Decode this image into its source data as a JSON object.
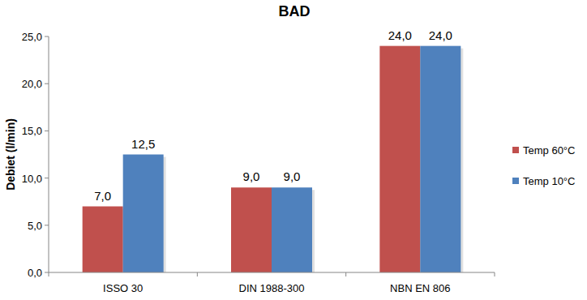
{
  "chart_data": {
    "type": "bar",
    "title": "BAD",
    "y_label": "Debiet (l/min)",
    "categories": [
      "ISSO 30",
      "DIN 1988-300",
      "NBN EN 806"
    ],
    "series": [
      {
        "name": "Temp 60°C",
        "color": "#c0504d",
        "values": [
          7,
          9,
          24
        ],
        "value_labels": [
          "7,0",
          "9,0",
          "24,0"
        ]
      },
      {
        "name": "Temp 10°C",
        "color": "#4f81bd",
        "values": [
          12.5,
          9,
          24
        ],
        "value_labels": [
          "12,5",
          "9,0",
          "24,0"
        ]
      }
    ],
    "ylim": [
      0,
      25
    ],
    "yticks": [
      {
        "value": 0,
        "label": "0,0"
      },
      {
        "value": 5,
        "label": "5,0"
      },
      {
        "value": 10,
        "label": "10,0"
      },
      {
        "value": 15,
        "label": "15,0"
      },
      {
        "value": 20,
        "label": "20,0"
      },
      {
        "value": 25,
        "label": "25,0"
      }
    ],
    "grid": false,
    "legend": "right",
    "data_labels": true
  }
}
